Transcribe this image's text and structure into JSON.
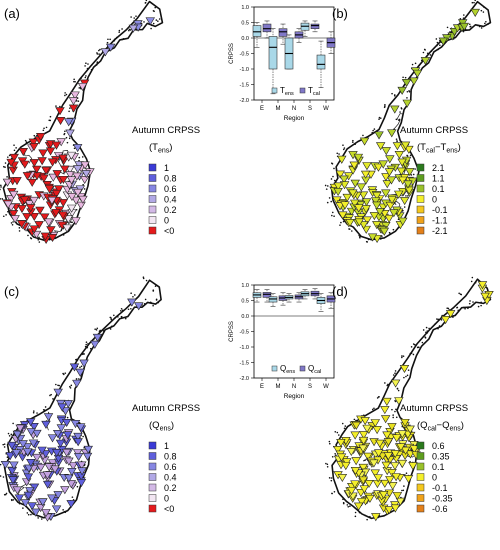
{
  "chart_data": [
    {
      "type": "map",
      "panel_label": "(a)",
      "legend": {
        "title_line1": "Autumn CRPSS",
        "title_line2": "(Tens)",
        "sub_base": "T",
        "sub_idx": "ens",
        "entries": [
          {
            "label": "1",
            "color": "#3a3ad6"
          },
          {
            "label": "0.8",
            "color": "#5f5fdc"
          },
          {
            "label": "0.6",
            "color": "#8787e3"
          },
          {
            "label": "0.4",
            "color": "#b2a9e6"
          },
          {
            "label": "0.2",
            "color": "#d3b9e6"
          },
          {
            "label": "0",
            "color": "#f2e6f2"
          },
          {
            "label": "<0",
            "color": "#e41a1c"
          }
        ]
      },
      "dominant_colors": [
        "#e41a1c",
        "#e8b8e0",
        "#8c8ce4"
      ]
    },
    {
      "type": "box",
      "ylabel": "CRPSS",
      "xlabel": "Region",
      "ylim": [
        -2.0,
        1.0
      ],
      "yticks": [
        "1.0",
        "0.5",
        "0.0",
        "-0.5",
        "-1.0",
        "-1.5",
        "-2.0"
      ],
      "categories": [
        "E",
        "M",
        "N",
        "S",
        "W"
      ],
      "legend": [
        {
          "base": "T",
          "idx": "ens",
          "color": "#a9d8e8"
        },
        {
          "base": "T",
          "idx": "cal",
          "color": "#8078c8"
        }
      ],
      "series": [
        {
          "name": "Tens",
          "boxes": [
            {
              "min": -0.3,
              "q1": 0.05,
              "median": 0.2,
              "q3": 0.4,
              "max": 0.5
            },
            {
              "min": -1.8,
              "q1": -1.0,
              "median": -0.3,
              "q3": 0.05,
              "max": 0.3
            },
            {
              "min": -1.0,
              "q1": -1.0,
              "median": -0.5,
              "q3": 0.0,
              "max": 0.1
            },
            {
              "min": 0.05,
              "q1": 0.25,
              "median": 0.38,
              "q3": 0.48,
              "max": 0.55
            },
            {
              "min": -1.6,
              "q1": -1.0,
              "median": -0.85,
              "q3": -0.55,
              "max": -0.1
            }
          ]
        },
        {
          "name": "Tcal",
          "boxes": [
            {
              "min": 0.0,
              "q1": 0.2,
              "median": 0.3,
              "q3": 0.45,
              "max": 0.55
            },
            {
              "min": -0.2,
              "q1": 0.05,
              "median": 0.2,
              "q3": 0.3,
              "max": 0.45
            },
            {
              "min": -0.15,
              "q1": 0.0,
              "median": 0.1,
              "q3": 0.2,
              "max": 0.3
            },
            {
              "min": 0.2,
              "q1": 0.3,
              "median": 0.4,
              "q3": 0.45,
              "max": 0.55
            },
            {
              "min": -0.5,
              "q1": -0.3,
              "median": -0.15,
              "q3": 0.0,
              "max": 0.2
            }
          ]
        }
      ]
    },
    {
      "type": "map",
      "panel_label": "(b)",
      "legend": {
        "title_line1": "Autumn CRPSS",
        "title_line2": "(Tcal−Tens)",
        "sub_base": "T",
        "sub_idx": "cal",
        "sub_base2": "T",
        "sub_idx2": "ens",
        "entries": [
          {
            "label": "2.1",
            "color": "#2b7a1d"
          },
          {
            "label": "1.1",
            "color": "#5e9e1f"
          },
          {
            "label": "0.1",
            "color": "#9ac22a"
          },
          {
            "label": "0",
            "color": "#f4ef2a"
          },
          {
            "label": "-0.1",
            "color": "#f4c81e"
          },
          {
            "label": "-1.1",
            "color": "#f0a21a"
          },
          {
            "label": "-2.1",
            "color": "#e3801a"
          }
        ]
      },
      "dominant_colors": [
        "#b4d22e",
        "#e3ea2a"
      ]
    },
    {
      "type": "map",
      "panel_label": "(c)",
      "legend": {
        "title_line1": "Autumn CRPSS",
        "title_line2": "(Qens)",
        "sub_base": "Q",
        "sub_idx": "ens",
        "entries": [
          {
            "label": "1",
            "color": "#3a3ad6"
          },
          {
            "label": "0.8",
            "color": "#5f5fdc"
          },
          {
            "label": "0.6",
            "color": "#8787e3"
          },
          {
            "label": "0.4",
            "color": "#b2a9e6"
          },
          {
            "label": "0.2",
            "color": "#d3b9e6"
          },
          {
            "label": "0",
            "color": "#f2e6f2"
          },
          {
            "label": "<0",
            "color": "#e41a1c"
          }
        ]
      },
      "dominant_colors": [
        "#5f5fdc",
        "#8787e3",
        "#c4a2e0"
      ]
    },
    {
      "type": "box",
      "ylabel": "CRPSS",
      "xlabel": "Region",
      "ylim": [
        -2.0,
        1.0
      ],
      "yticks": [
        "1.0",
        "0.5",
        "0.0",
        "-0.5",
        "-1.0",
        "-1.5",
        "-2.0"
      ],
      "categories": [
        "E",
        "M",
        "N",
        "S",
        "W"
      ],
      "legend": [
        {
          "base": "Q",
          "idx": "ens",
          "color": "#a9d8e8"
        },
        {
          "base": "Q",
          "idx": "cal",
          "color": "#8078c8"
        }
      ],
      "series": [
        {
          "name": "Qens",
          "boxes": [
            {
              "min": 0.45,
              "q1": 0.6,
              "median": 0.68,
              "q3": 0.75,
              "max": 0.85
            },
            {
              "min": 0.3,
              "q1": 0.45,
              "median": 0.55,
              "q3": 0.62,
              "max": 0.72
            },
            {
              "min": 0.45,
              "q1": 0.55,
              "median": 0.6,
              "q3": 0.66,
              "max": 0.72
            },
            {
              "min": 0.55,
              "q1": 0.65,
              "median": 0.72,
              "q3": 0.78,
              "max": 0.85
            },
            {
              "min": 0.15,
              "q1": 0.4,
              "median": 0.5,
              "q3": 0.6,
              "max": 0.72
            }
          ]
        },
        {
          "name": "Qcal",
          "boxes": [
            {
              "min": 0.45,
              "q1": 0.6,
              "median": 0.7,
              "q3": 0.76,
              "max": 0.85
            },
            {
              "min": 0.35,
              "q1": 0.5,
              "median": 0.58,
              "q3": 0.65,
              "max": 0.75
            },
            {
              "min": 0.45,
              "q1": 0.55,
              "median": 0.62,
              "q3": 0.68,
              "max": 0.75
            },
            {
              "min": 0.55,
              "q1": 0.65,
              "median": 0.72,
              "q3": 0.8,
              "max": 0.88
            },
            {
              "min": 0.25,
              "q1": 0.45,
              "median": 0.55,
              "q3": 0.65,
              "max": 0.75
            }
          ]
        }
      ]
    },
    {
      "type": "map",
      "panel_label": "(d)",
      "legend": {
        "title_line1": "Autumn CRPSS",
        "title_line2": "(Qcal−Qens)",
        "sub_base": "Q",
        "sub_idx": "cal",
        "sub_base2": "Q",
        "sub_idx2": "ens",
        "entries": [
          {
            "label": "0.6",
            "color": "#2b7a1d"
          },
          {
            "label": "0.35",
            "color": "#5e9e1f"
          },
          {
            "label": "0.1",
            "color": "#9ac22a"
          },
          {
            "label": "0",
            "color": "#f4ef2a"
          },
          {
            "label": "-0.1",
            "color": "#f4c81e"
          },
          {
            "label": "-0.35",
            "color": "#f0a21a"
          },
          {
            "label": "-0.6",
            "color": "#e3801a"
          }
        ]
      },
      "dominant_colors": [
        "#f4ef2a",
        "#f4f450"
      ]
    }
  ]
}
